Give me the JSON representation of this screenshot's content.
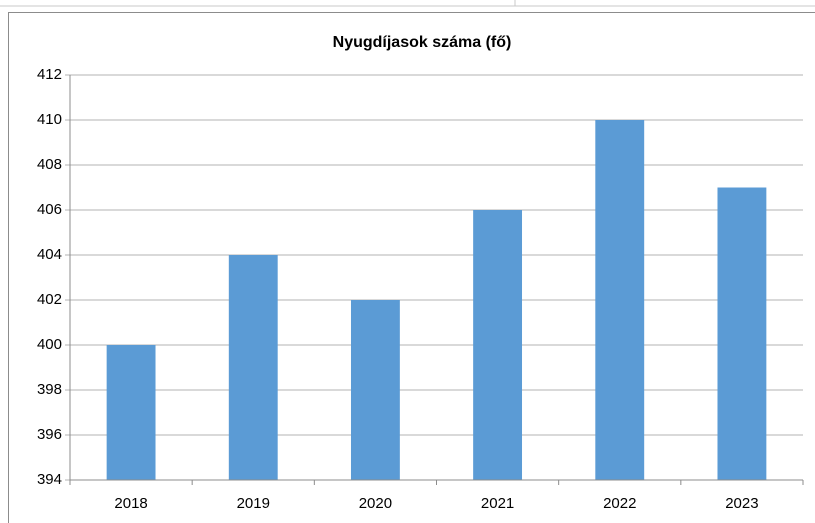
{
  "chart_data": {
    "type": "bar",
    "title": "Nyugdíjasok száma (fő)",
    "categories": [
      "2018",
      "2019",
      "2020",
      "2021",
      "2022",
      "2023"
    ],
    "values": [
      400,
      404,
      402,
      406,
      410,
      407
    ],
    "color": "#5b9bd5",
    "ylim": [
      394,
      412
    ],
    "yticks": [
      394,
      396,
      398,
      400,
      402,
      404,
      406,
      408,
      410,
      412
    ],
    "grid": true
  }
}
